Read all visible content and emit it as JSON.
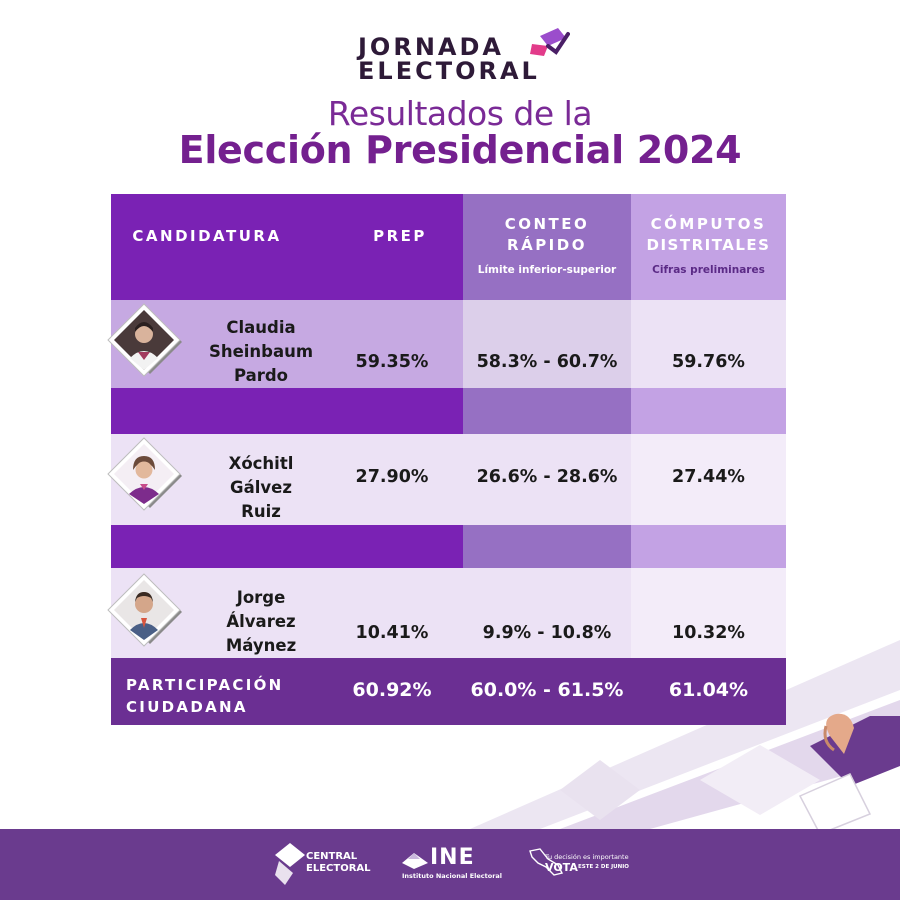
{
  "header": {
    "logo_line1": "JORNADA",
    "logo_line2": "ELECTORAL",
    "subtitle": "Resultados de la",
    "title": "Elección Presidencial 2024"
  },
  "table": {
    "columns": {
      "candidatura": "CANDIDATURA",
      "prep": "PREP",
      "conteo_line1": "CONTEO",
      "conteo_line2": "RÁPIDO",
      "conteo_sub": "Límite inferior-superior",
      "computos_line1": "CÓMPUTOS",
      "computos_line2": "DISTRITALES",
      "computos_sub": "Cifras preliminares"
    },
    "rows": [
      {
        "name_lines": [
          "Claudia",
          "Sheinbaum",
          "Pardo"
        ],
        "prep": "59.35%",
        "conteo": "58.3% - 60.7%",
        "computos": "59.76%"
      },
      {
        "name_lines": [
          "Xóchitl",
          "Gálvez",
          "Ruiz"
        ],
        "prep": "27.90%",
        "conteo": "26.6% - 28.6%",
        "computos": "27.44%"
      },
      {
        "name_lines": [
          "Jorge",
          "Álvarez",
          "Máynez"
        ],
        "prep": "10.41%",
        "conteo": "9.9% - 10.8%",
        "computos": "10.32%"
      }
    ],
    "total": {
      "label_line1": "PARTICIPACIÓN",
      "label_line2": "CIUDADANA",
      "prep": "60.92%",
      "conteo": "60.0% - 61.5%",
      "computos": "61.04%"
    }
  },
  "footer": {
    "central_line1": "CENTRAL",
    "central_line2": "ELECTORAL",
    "ine_text": "INE",
    "ine_sub": "Instituto Nacional Electoral",
    "vota_line1": "Tu decisión es importante",
    "vota_word": "VOTA",
    "vota_date": "ESTE 2 DE JUNIO"
  },
  "colors": {
    "purple_dark": "#7a22b4",
    "purple_mid": "#9670c3",
    "purple_light": "#c3a2e4",
    "row_name_bg": "#c6a9e2",
    "row_conteo_bg": "#dccfea",
    "row_computos_bg": "#ece2f5",
    "total_bg": "#6b2f93",
    "title": "#74208f",
    "footer": "#6a3b8e"
  },
  "icons": [
    "ballot-box-icon",
    "hand-with-ballot-icon",
    "central-electoral-logo-icon",
    "ine-logo-icon",
    "mexico-map-icon"
  ]
}
